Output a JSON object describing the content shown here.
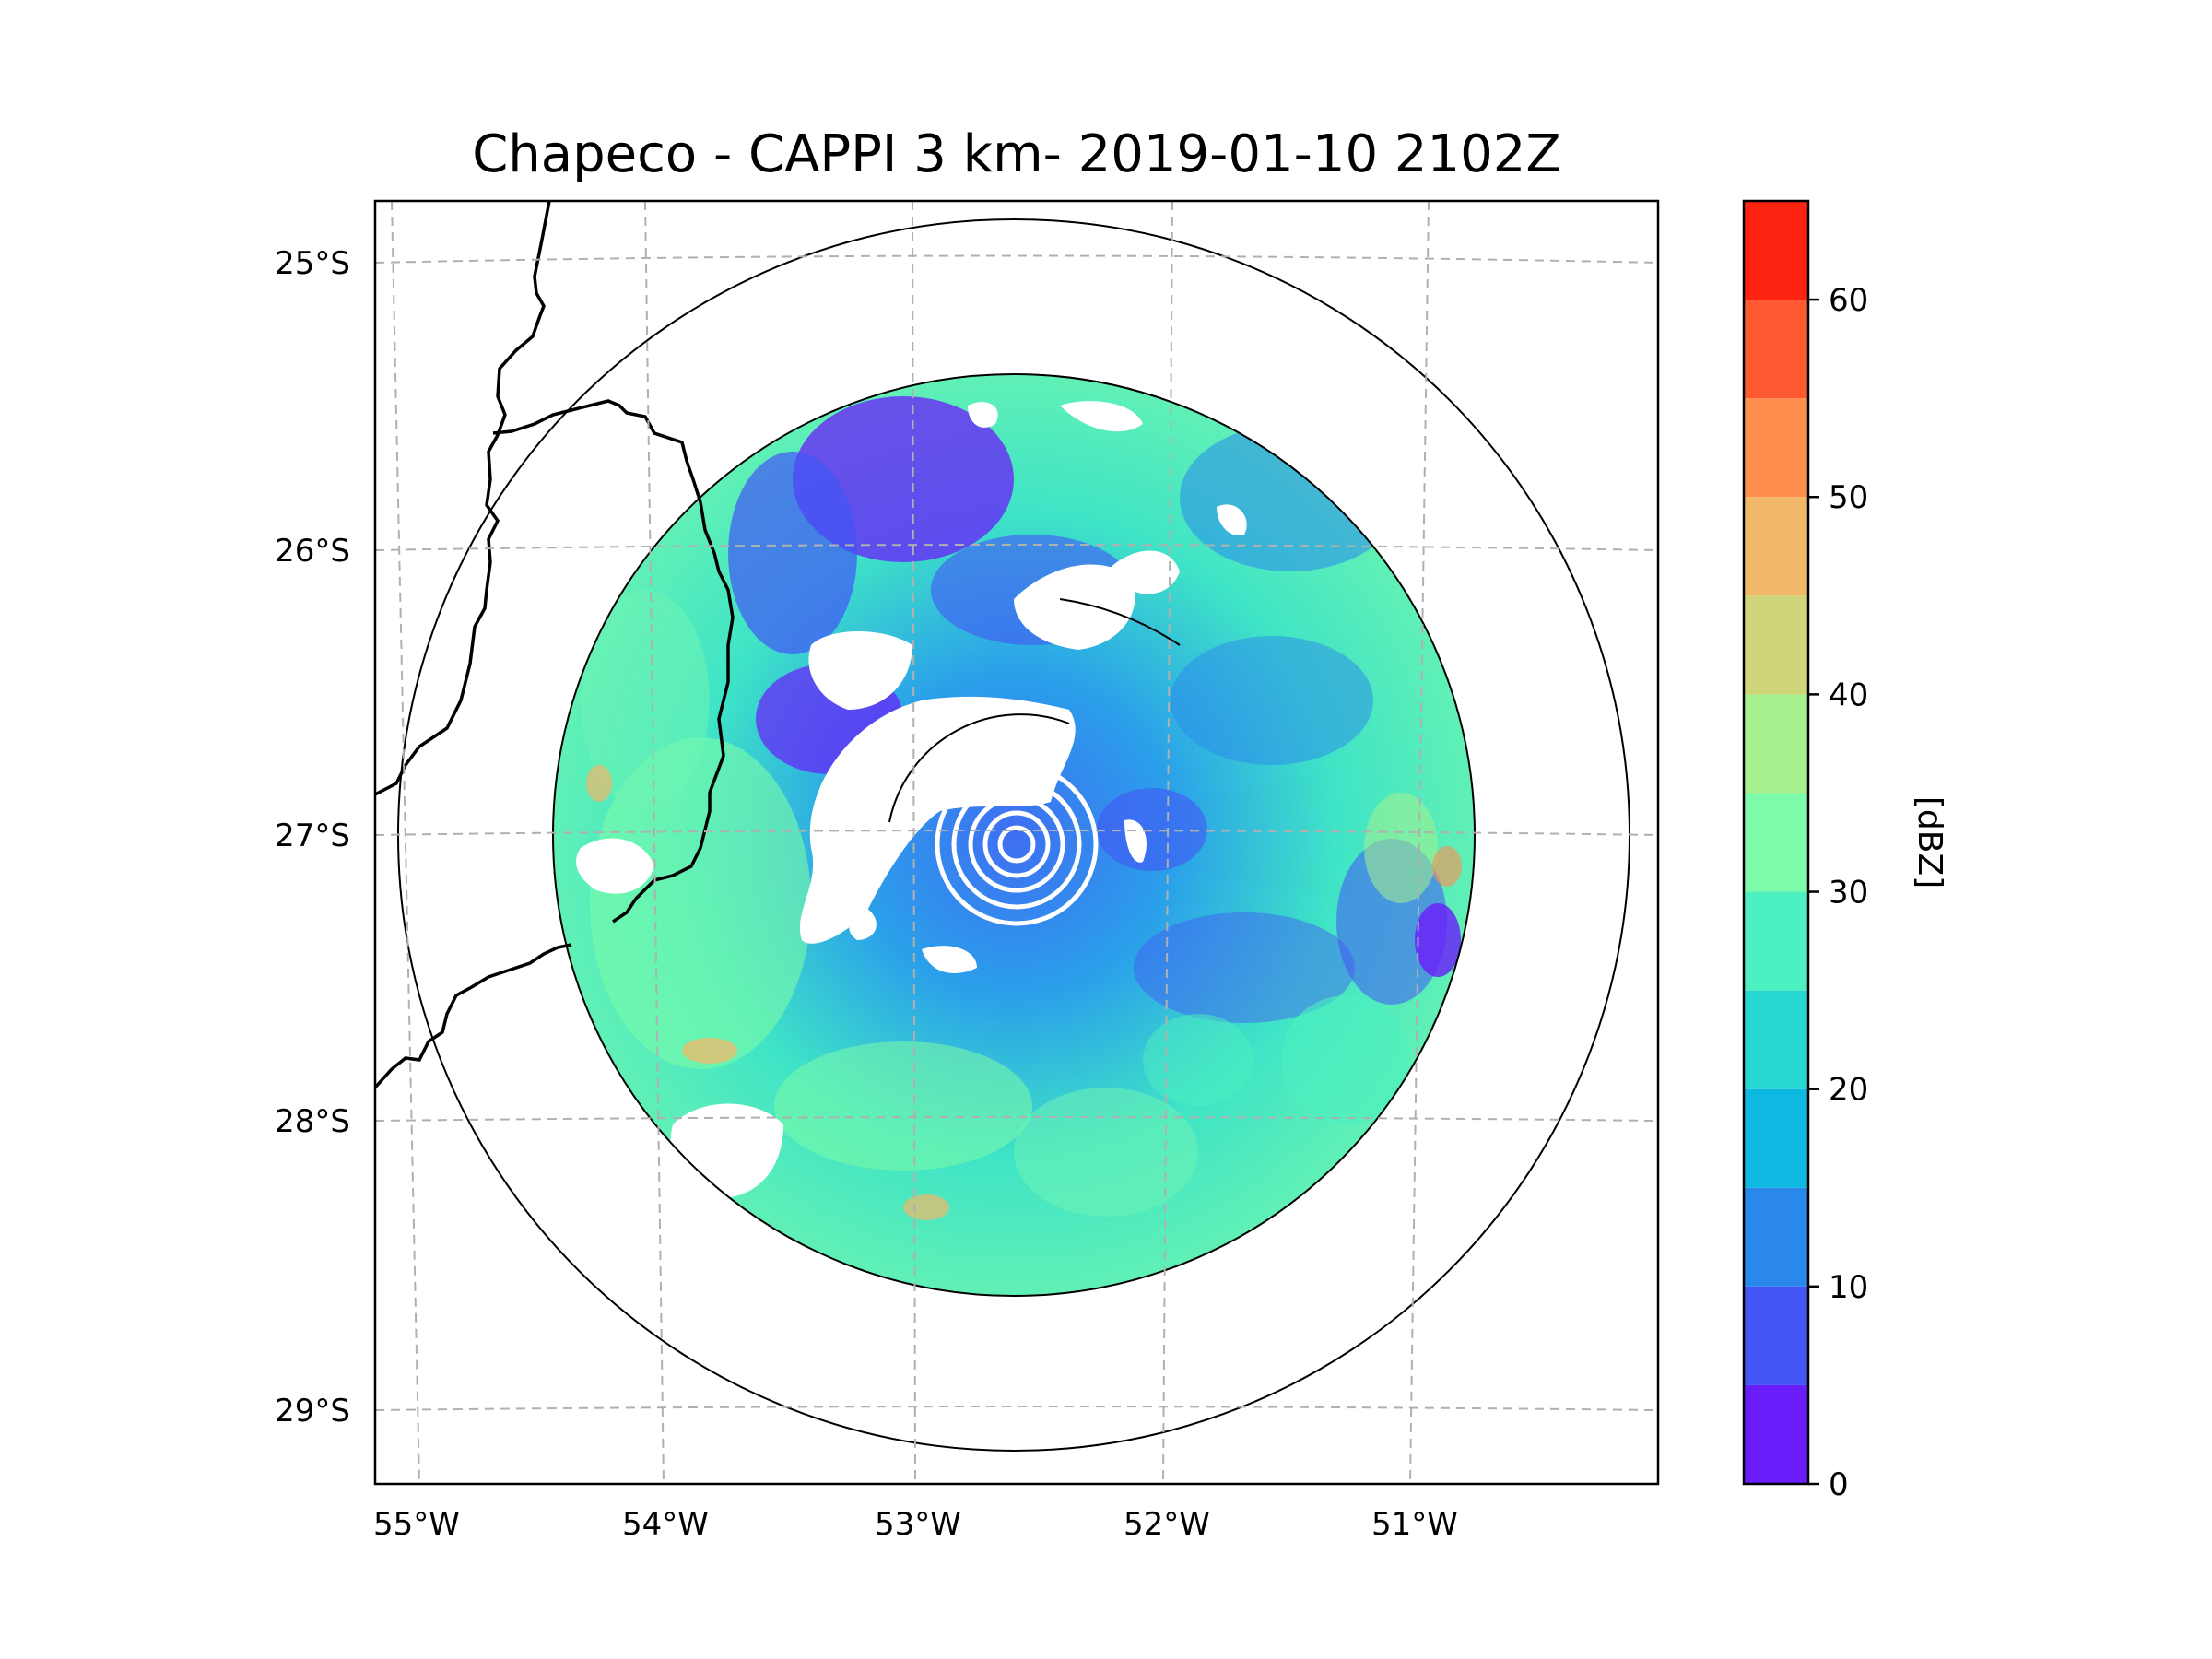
{
  "title": "Chapeco - CAPPI 3 km- 2019-01-10 2102Z",
  "lat_labels": [
    "25°S",
    "26°S",
    "27°S",
    "28°S",
    "29°S"
  ],
  "lon_labels": [
    "55°W",
    "54°W",
    "53°W",
    "52°W",
    "51°W"
  ],
  "colorbar": {
    "label": "[dBZ]",
    "ticks": [
      "0",
      "10",
      "20",
      "30",
      "40",
      "50",
      "60"
    ],
    "min": 0,
    "max": 65,
    "step": 5,
    "colors": [
      "#6a1cfa",
      "#4256f5",
      "#2a88ec",
      "#0fb8e0",
      "#28d8d2",
      "#4df0c0",
      "#7cfca8",
      "#a6f08e",
      "#cfd67a",
      "#f1b86a",
      "#ff8e4f",
      "#ff5a32",
      "#ff2412"
    ]
  },
  "colors": {
    "grid": "#b0b0b0",
    "coast": "#000000",
    "range_ring": "#000000",
    "no_echo": "#ffffff"
  }
}
